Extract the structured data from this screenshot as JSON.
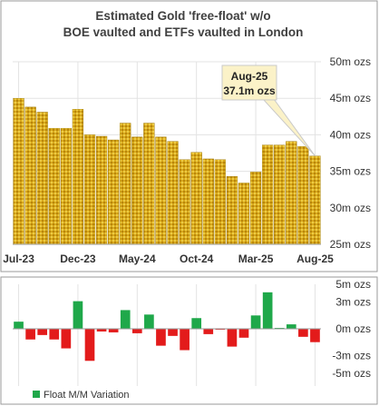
{
  "chart_data": [
    {
      "type": "bar",
      "title": "Estimated Gold 'free-float' w/o BOE vaulted and ETFs vaulted in London",
      "title_lines": [
        "Estimated Gold 'free-float' w/o",
        "BOE vaulted and ETFs vaulted in London"
      ],
      "xlabel": "",
      "ylabel": "",
      "ylim": [
        25,
        50
      ],
      "y_ticks": [
        25,
        30,
        35,
        40,
        45,
        50
      ],
      "y_tick_labels": [
        "25m ozs",
        "30m ozs",
        "35m ozs",
        "40m ozs",
        "45m ozs",
        "50m ozs"
      ],
      "grid": "vertical-every-5-months",
      "x_tick_labels": [
        {
          "index": 0,
          "label": "Jul-23"
        },
        {
          "index": 5,
          "label": "Dec-23"
        },
        {
          "index": 10,
          "label": "May-24"
        },
        {
          "index": 15,
          "label": "Oct-24"
        },
        {
          "index": 20,
          "label": "Mar-25"
        },
        {
          "index": 25,
          "label": "Aug-25"
        }
      ],
      "categories": [
        "Jul-23",
        "Aug-23",
        "Sep-23",
        "Oct-23",
        "Nov-23",
        "Dec-23",
        "Jan-24",
        "Feb-24",
        "Mar-24",
        "Apr-24",
        "May-24",
        "Jun-24",
        "Jul-24",
        "Aug-24",
        "Sep-24",
        "Oct-24",
        "Nov-24",
        "Dec-24",
        "Jan-25",
        "Feb-25",
        "Mar-25",
        "Apr-25",
        "May-25",
        "Jun-25",
        "Jul-25",
        "Aug-25"
      ],
      "values": [
        45.0,
        43.8,
        43.1,
        40.9,
        40.9,
        43.5,
        40.0,
        39.8,
        39.3,
        41.6,
        39.7,
        41.6,
        39.7,
        39.1,
        36.6,
        37.6,
        36.7,
        36.6,
        34.3,
        33.4,
        34.9,
        38.6,
        38.6,
        39.1,
        38.4,
        37.1
      ],
      "bar_color": "#d9a91c",
      "callout": {
        "index": 25,
        "title": "Aug-25",
        "value_label": "37.1m ozs"
      }
    },
    {
      "type": "bar",
      "title": "",
      "ylim": [
        -5,
        5
      ],
      "y_ticks": [
        -5,
        -3,
        0,
        3,
        5
      ],
      "y_tick_labels": [
        "-5m ozs",
        "-3m ozs",
        "0m ozs",
        "3m ozs",
        "5m ozs"
      ],
      "series": [
        {
          "name": "Float M/M Variation",
          "values": [
            0.8,
            -1.2,
            -0.7,
            -1.2,
            -2.2,
            3.1,
            -3.6,
            -0.3,
            -0.4,
            2.1,
            -0.5,
            1.6,
            -1.9,
            -0.8,
            -2.4,
            1.2,
            -0.6,
            -0.1,
            -2.0,
            -1.0,
            1.5,
            4.1,
            0.1,
            0.5,
            -0.9,
            -1.5
          ]
        }
      ],
      "positive_color": "#1fa84a",
      "negative_color": "#e31b1b",
      "legend": "bottom-left"
    }
  ]
}
